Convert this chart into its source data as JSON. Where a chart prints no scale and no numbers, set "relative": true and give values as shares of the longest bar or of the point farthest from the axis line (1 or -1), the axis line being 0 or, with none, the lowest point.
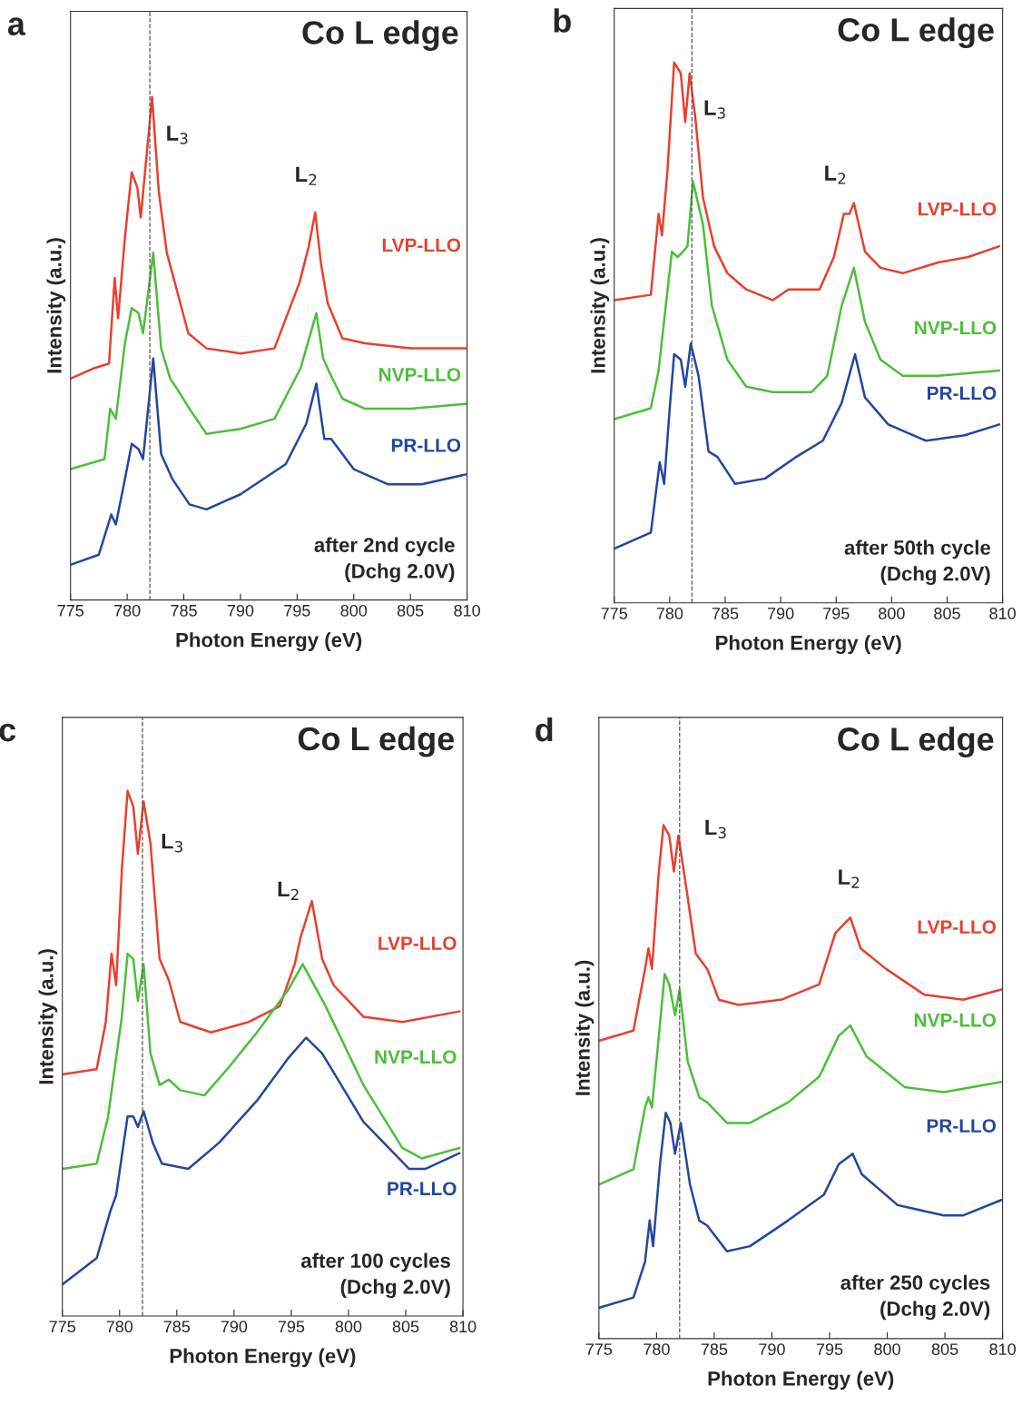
{
  "chart_data": [
    {
      "type": "line",
      "title": "Co L edge",
      "xlabel": "Photon Energy (eV)",
      "ylabel": "Intensity (a.u.)",
      "relative": true,
      "xlim": [
        775,
        810
      ],
      "xticks": [
        775,
        780,
        785,
        790,
        795,
        800,
        805,
        810
      ],
      "tick_labels": "x",
      "grid": false,
      "legend": false,
      "line_style": "solid",
      "marker": "none",
      "ref_lines": [
        {
          "axis": "x",
          "value": 782,
          "color": "#555555",
          "line_style": "dashed"
        }
      ],
      "annotations": [
        "a",
        "after 2nd cycle\n(Dchg 2.0V)",
        "L$_{3}$",
        "L$_{2}$"
      ],
      "series": [
        {
          "name": "LVP-LLO",
          "color": "#e8402f",
          "x": [
            775,
            777,
            778.4,
            778.9,
            779.2,
            779.8,
            780.4,
            780.9,
            781.2,
            782.2,
            782.8,
            783.5,
            784.1,
            785.4,
            787,
            790,
            793,
            795.2,
            796,
            796.6,
            797.1,
            797.7,
            799,
            801,
            805,
            810
          ],
          "values": [
            0.44,
            0.46,
            0.47,
            0.64,
            0.56,
            0.72,
            0.85,
            0.82,
            0.76,
            1.0,
            0.81,
            0.69,
            0.64,
            0.53,
            0.5,
            0.49,
            0.5,
            0.63,
            0.7,
            0.77,
            0.67,
            0.59,
            0.52,
            0.51,
            0.5,
            0.5
          ]
        },
        {
          "name": "NVP-LLO",
          "color": "#4cbf3a",
          "x": [
            775,
            778,
            778.5,
            779,
            779.8,
            780.4,
            781,
            781.4,
            782.3,
            783,
            783.8,
            784.4,
            785.5,
            787,
            790,
            793,
            795.3,
            796.7,
            797.3,
            797.9,
            799,
            801,
            805,
            810
          ],
          "values": [
            0.26,
            0.28,
            0.38,
            0.36,
            0.51,
            0.58,
            0.57,
            0.53,
            0.69,
            0.5,
            0.44,
            0.42,
            0.38,
            0.33,
            0.34,
            0.36,
            0.46,
            0.57,
            0.48,
            0.45,
            0.4,
            0.38,
            0.38,
            0.39
          ]
        },
        {
          "name": "PR-LLO",
          "color": "#2346a0",
          "x": [
            775,
            777.5,
            778.6,
            779,
            779.8,
            780.4,
            781,
            781.4,
            782.3,
            783,
            784,
            785.5,
            787,
            790,
            794,
            795.8,
            796.7,
            797.4,
            798,
            800,
            803,
            806,
            810
          ],
          "values": [
            0.07,
            0.09,
            0.17,
            0.15,
            0.24,
            0.31,
            0.3,
            0.28,
            0.48,
            0.29,
            0.24,
            0.19,
            0.18,
            0.21,
            0.27,
            0.35,
            0.43,
            0.32,
            0.32,
            0.26,
            0.23,
            0.23,
            0.25
          ]
        }
      ]
    },
    {
      "type": "line",
      "title": "Co L edge",
      "xlabel": "Photon Energy (eV)",
      "ylabel": "Intensity (a.u.)",
      "relative": true,
      "xlim": [
        775,
        810
      ],
      "xticks": [
        775,
        780,
        785,
        790,
        795,
        800,
        805,
        810
      ],
      "tick_labels": "x",
      "grid": false,
      "legend": false,
      "line_style": "solid",
      "marker": "none",
      "ref_lines": [
        {
          "axis": "x",
          "value": 782,
          "color": "#555555",
          "line_style": "dashed"
        }
      ],
      "annotations": [
        "b",
        "after 50th cycle\n(Dchg 2.0V)",
        "L$_{3}$",
        "L$_{2}$"
      ],
      "series": [
        {
          "name": "LVP-LLO",
          "color": "#e8402f",
          "x": [
            775,
            778.3,
            779,
            779.3,
            779.8,
            780.4,
            781,
            781.4,
            781.8,
            782.3,
            783,
            784,
            785.2,
            786.9,
            789.3,
            790.7,
            793.5,
            794.8,
            795.7,
            796.2,
            796.6,
            797.6,
            799,
            801,
            804.2,
            806.9,
            809.7
          ],
          "values": [
            0.56,
            0.57,
            0.72,
            0.68,
            0.8,
            1.0,
            0.98,
            0.89,
            0.98,
            0.9,
            0.75,
            0.66,
            0.61,
            0.58,
            0.56,
            0.58,
            0.58,
            0.64,
            0.72,
            0.72,
            0.74,
            0.65,
            0.62,
            0.61,
            0.63,
            0.64,
            0.66
          ]
        },
        {
          "name": "NVP-LLO",
          "color": "#4cbf3a",
          "x": [
            775,
            778.3,
            779,
            779.7,
            780.2,
            780.7,
            781.2,
            781.6,
            782.1,
            783,
            783.8,
            785.2,
            786.9,
            789.3,
            792.8,
            794.2,
            795.5,
            796.6,
            797.6,
            799,
            801,
            804.2,
            809.7
          ],
          "values": [
            0.34,
            0.36,
            0.43,
            0.56,
            0.65,
            0.64,
            0.65,
            0.66,
            0.78,
            0.7,
            0.55,
            0.45,
            0.4,
            0.39,
            0.39,
            0.42,
            0.55,
            0.62,
            0.52,
            0.45,
            0.42,
            0.42,
            0.43
          ]
        },
        {
          "name": "PR-LLO",
          "color": "#2346a0",
          "x": [
            775,
            778.3,
            779.1,
            779.5,
            780,
            780.4,
            781,
            781.4,
            781.9,
            782.6,
            783.5,
            784.3,
            785.9,
            788.6,
            791.4,
            793.8,
            795.5,
            796.7,
            797.6,
            799.7,
            803.1,
            806.6,
            809.7
          ],
          "values": [
            0.1,
            0.13,
            0.26,
            0.22,
            0.36,
            0.46,
            0.45,
            0.4,
            0.48,
            0.42,
            0.28,
            0.27,
            0.22,
            0.23,
            0.27,
            0.3,
            0.37,
            0.46,
            0.38,
            0.33,
            0.3,
            0.31,
            0.33
          ]
        }
      ]
    },
    {
      "type": "line",
      "title": "Co L edge",
      "xlabel": "Photon Energy (eV)",
      "ylabel": "Intensity (a.u.)",
      "relative": true,
      "xlim": [
        775,
        810
      ],
      "xticks": [
        775,
        780,
        785,
        790,
        795,
        800,
        805,
        810
      ],
      "tick_labels": "x",
      "grid": false,
      "legend": false,
      "line_style": "solid",
      "marker": "none",
      "ref_lines": [
        {
          "axis": "x",
          "value": 782,
          "color": "#555555",
          "line_style": "dashed"
        }
      ],
      "annotations": [
        "c",
        "after 100 cycles\n(Dchg 2.0V)",
        "L$_{3}$",
        "L$_{2}$"
      ],
      "series": [
        {
          "name": "LVP-LLO",
          "color": "#e8402f",
          "x": [
            775,
            778,
            778.8,
            779.3,
            779.7,
            780.2,
            780.7,
            781.2,
            781.6,
            782.1,
            782.7,
            783.5,
            784.3,
            785.3,
            788,
            791.3,
            794,
            795.3,
            795.8,
            796.8,
            797.7,
            798.7,
            801.3,
            804.7,
            809.7
          ],
          "values": [
            0.46,
            0.47,
            0.56,
            0.69,
            0.63,
            0.85,
            1.0,
            0.97,
            0.88,
            0.98,
            0.9,
            0.68,
            0.64,
            0.56,
            0.54,
            0.56,
            0.59,
            0.67,
            0.72,
            0.79,
            0.68,
            0.63,
            0.57,
            0.56,
            0.58
          ]
        },
        {
          "name": "NVP-LLO",
          "color": "#4cbf3a",
          "x": [
            775,
            778,
            779,
            779.5,
            780.2,
            780.7,
            781.2,
            781.6,
            782.1,
            782.7,
            783.5,
            784.3,
            785.3,
            787.4,
            789.4,
            792,
            794.7,
            796,
            798,
            801.3,
            804.7,
            806.4,
            809.7
          ],
          "values": [
            0.28,
            0.29,
            0.38,
            0.46,
            0.57,
            0.69,
            0.68,
            0.6,
            0.67,
            0.5,
            0.44,
            0.45,
            0.43,
            0.42,
            0.47,
            0.54,
            0.62,
            0.67,
            0.59,
            0.44,
            0.32,
            0.3,
            0.32
          ]
        },
        {
          "name": "PR-LLO",
          "color": "#2346a0",
          "x": [
            775,
            778,
            779.2,
            779.7,
            780.7,
            781.2,
            781.6,
            782.1,
            782.9,
            783.7,
            786,
            788.7,
            792,
            794.7,
            796.3,
            797.7,
            801.3,
            805.3,
            806.7,
            809.7
          ],
          "values": [
            0.06,
            0.11,
            0.2,
            0.23,
            0.38,
            0.38,
            0.36,
            0.39,
            0.33,
            0.29,
            0.28,
            0.33,
            0.41,
            0.49,
            0.53,
            0.5,
            0.37,
            0.28,
            0.28,
            0.31
          ]
        }
      ]
    },
    {
      "type": "line",
      "title": "Co L edge",
      "xlabel": "Photon Energy (eV)",
      "ylabel": "Intensity (a.u.)",
      "relative": true,
      "xlim": [
        775,
        810
      ],
      "xticks": [
        775,
        780,
        785,
        790,
        795,
        800,
        805,
        810
      ],
      "tick_labels": "x",
      "grid": false,
      "legend": false,
      "line_style": "solid",
      "marker": "none",
      "ref_lines": [
        {
          "axis": "x",
          "value": 782,
          "color": "#555555",
          "line_style": "dashed"
        }
      ],
      "annotations": [
        "d",
        "after 250 cycles\n(Dchg 2.0V)",
        "L$_{3}$",
        "L$_{2}$"
      ],
      "series": [
        {
          "name": "LVP-LLO",
          "color": "#e8402f",
          "x": [
            775,
            778,
            779,
            779.3,
            779.6,
            780.2,
            780.6,
            781.1,
            781.5,
            781.9,
            782.5,
            783.4,
            784.4,
            785.4,
            787.1,
            790.8,
            794.1,
            795.5,
            796.8,
            797.7,
            799.9,
            803.2,
            806.6,
            809.9
          ],
          "values": [
            0.58,
            0.6,
            0.72,
            0.76,
            0.72,
            0.91,
            1.0,
            0.98,
            0.91,
            0.98,
            0.89,
            0.75,
            0.72,
            0.66,
            0.65,
            0.66,
            0.69,
            0.79,
            0.82,
            0.76,
            0.72,
            0.67,
            0.66,
            0.68
          ]
        },
        {
          "name": "NVP-LLO",
          "color": "#4cbf3a",
          "x": [
            775,
            778,
            779,
            779.3,
            779.6,
            780.2,
            780.7,
            781.1,
            781.6,
            782,
            782.7,
            783.7,
            784.4,
            786.1,
            788.1,
            791.4,
            794.1,
            795.8,
            796.8,
            798.2,
            801.5,
            804.9,
            809.9
          ],
          "values": [
            0.3,
            0.33,
            0.45,
            0.47,
            0.45,
            0.59,
            0.71,
            0.69,
            0.63,
            0.68,
            0.54,
            0.47,
            0.46,
            0.42,
            0.42,
            0.46,
            0.51,
            0.59,
            0.61,
            0.55,
            0.49,
            0.48,
            0.5
          ]
        },
        {
          "name": "PR-LLO",
          "color": "#2346a0",
          "x": [
            775,
            778,
            779,
            779.4,
            779.7,
            780.3,
            780.8,
            781.2,
            781.6,
            782.1,
            782.9,
            783.7,
            784.4,
            786.1,
            788.1,
            791.4,
            794.5,
            795.8,
            797,
            797.8,
            800.9,
            804.9,
            806.6,
            809.9
          ],
          "values": [
            0.06,
            0.08,
            0.15,
            0.23,
            0.18,
            0.34,
            0.44,
            0.42,
            0.36,
            0.42,
            0.3,
            0.23,
            0.22,
            0.17,
            0.18,
            0.23,
            0.28,
            0.34,
            0.36,
            0.32,
            0.26,
            0.24,
            0.24,
            0.27
          ]
        }
      ]
    }
  ]
}
